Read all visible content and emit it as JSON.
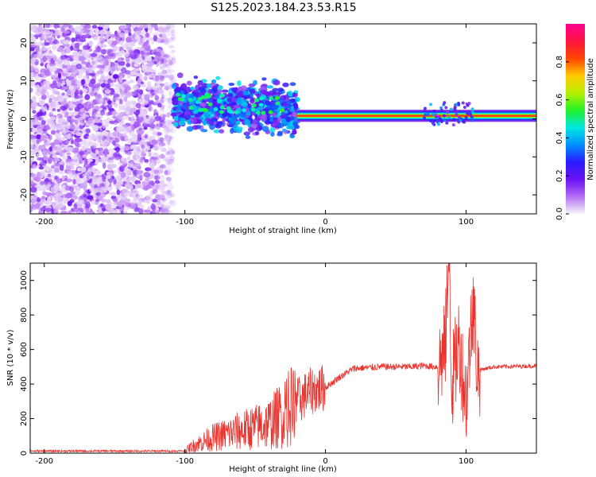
{
  "title": "S125.2023.184.23.53.R15",
  "colors": {
    "snr_line": "#e8332e",
    "point_light": "#d9b8f5",
    "point_dark": "#7a1ff0",
    "axis": "#000000"
  },
  "chart_data": [
    {
      "type": "heatmap",
      "xlabel": "Height of straight line (km)",
      "ylabel": "Frequency (Hz)",
      "xlim": [
        -210,
        150
      ],
      "ylim": [
        -25,
        25
      ],
      "xticks": [
        -200,
        -100,
        0,
        100
      ],
      "yticks": [
        -20,
        -10,
        0,
        10,
        20
      ],
      "grid": false,
      "colorbar": {
        "label": "Normalized spectral amplitude",
        "range": [
          0.0,
          1.0
        ],
        "ticks": [
          "0.0",
          "0.2",
          "0.4",
          "0.6",
          "0.8"
        ],
        "colormap": [
          "#f8f8f8",
          "#b36cf5",
          "#6a11f2",
          "#2a1aff",
          "#0090ff",
          "#00e8e0",
          "#22f028",
          "#b8f000",
          "#ffc800",
          "#ff4400",
          "#ff1440",
          "#ff0090"
        ]
      },
      "regions": [
        {
          "x": [
            -210,
            -108
          ],
          "freq_range": [
            -25,
            25
          ],
          "amplitude": [
            0.02,
            0.18
          ],
          "description": "noise"
        },
        {
          "x": [
            -108,
            -20
          ],
          "freq_center": 4,
          "freq_spread": 6,
          "amplitude": [
            0.1,
            0.45
          ]
        },
        {
          "x": [
            -20,
            150
          ],
          "freq_center": 0.8,
          "freq_spread": 0.6,
          "amplitude": [
            0.6,
            0.95
          ]
        }
      ]
    },
    {
      "type": "line",
      "xlabel": "Height of straight line (km)",
      "ylabel": "SNR (10 * v/v)",
      "xlim": [
        -210,
        150
      ],
      "ylim": [
        0,
        1100
      ],
      "xticks": [
        -200,
        -100,
        0,
        100
      ],
      "yticks": [
        0,
        200,
        400,
        600,
        800,
        1000
      ],
      "grid": false,
      "series": [
        {
          "x": [
            -210,
            -150,
            -100,
            -95,
            -80,
            -60,
            -40,
            -30,
            -20,
            -10,
            0,
            10,
            20,
            40,
            60,
            70,
            80,
            85,
            88,
            90,
            95,
            100,
            105,
            108,
            120,
            150
          ],
          "y": [
            12,
            12,
            12,
            40,
            90,
            130,
            170,
            230,
            300,
            360,
            380,
            440,
            490,
            500,
            500,
            505,
            500,
            600,
            1100,
            400,
            650,
            300,
            900,
            480,
            500,
            505
          ]
        }
      ]
    }
  ]
}
